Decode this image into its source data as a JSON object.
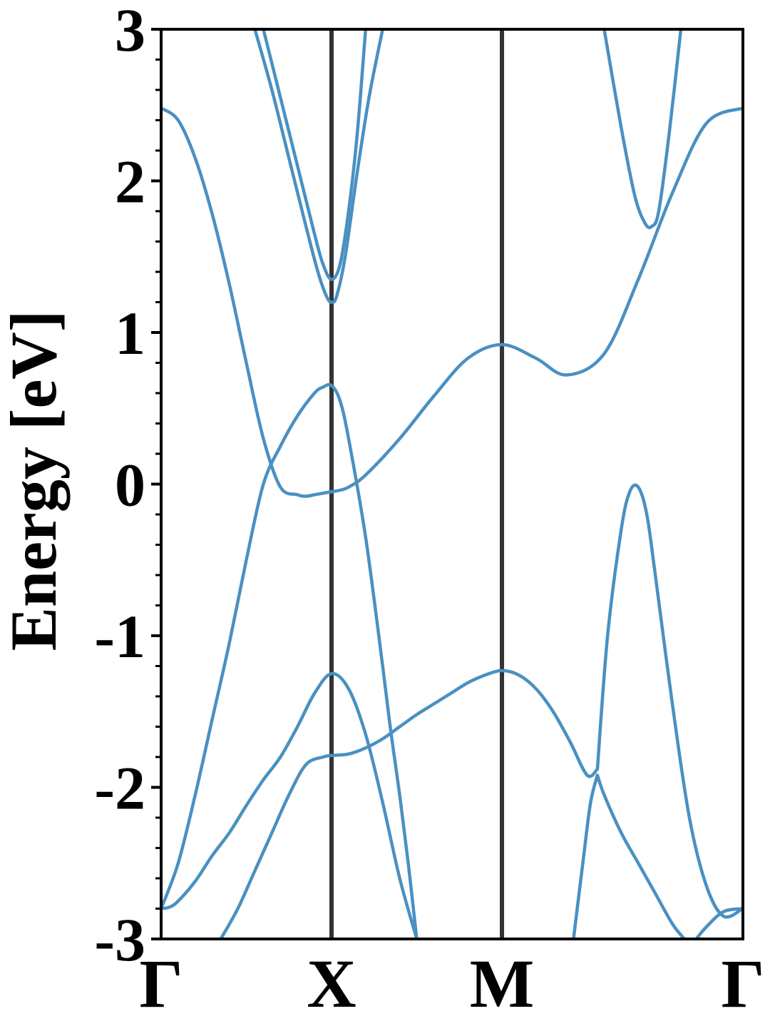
{
  "chart_data": {
    "type": "line",
    "ylabel": "Energy [eV]",
    "ylim": [
      -3,
      3
    ],
    "xlim": [
      0,
      3.414
    ],
    "yticks": [
      -3,
      -2,
      -1,
      0,
      1,
      2,
      3
    ],
    "ytick_labels": [
      "-3",
      "-2",
      "-1",
      "0",
      "1",
      "2",
      "3"
    ],
    "minor_ytick_step": 0.2,
    "kpoints": [
      {
        "label": "Γ",
        "x": 0
      },
      {
        "label": "X",
        "x": 1.0
      },
      {
        "label": "M",
        "x": 2.0
      },
      {
        "label": "Γ",
        "x": 3.414
      }
    ],
    "band_color": "#4a90c2",
    "kpath_line_color": "#333333",
    "grid": false,
    "legend": "none",
    "series": [
      {
        "x": [
          0,
          0.1,
          0.2,
          0.3,
          0.4,
          0.5,
          0.6,
          0.7,
          0.8,
          0.85,
          0.9,
          0.95,
          1.0,
          1.05,
          1.1,
          1.2,
          1.4,
          1.6,
          1.8,
          2.0,
          2.2,
          2.38,
          2.6,
          2.8,
          3.0,
          3.2,
          3.414
        ],
        "y": [
          2.48,
          2.4,
          2.15,
          1.78,
          1.32,
          0.8,
          0.3,
          -0.02,
          -0.07,
          -0.08,
          -0.07,
          -0.06,
          -0.05,
          -0.04,
          -0.02,
          0.06,
          0.3,
          0.58,
          0.83,
          0.92,
          0.83,
          0.72,
          0.86,
          1.35,
          1.92,
          2.38,
          2.48
        ]
      },
      {
        "x": [
          0,
          0.1,
          0.2,
          0.3,
          0.4,
          0.5,
          0.6,
          0.7,
          0.8,
          0.9,
          0.95,
          1.0,
          1.05,
          1.1,
          1.2,
          1.3,
          1.35,
          1.4,
          1.45,
          1.5
        ],
        "y": [
          -2.8,
          -2.5,
          -2.05,
          -1.55,
          -1.05,
          -0.5,
          0.0,
          0.25,
          0.45,
          0.6,
          0.64,
          0.65,
          0.55,
          0.3,
          -0.35,
          -1.2,
          -1.65,
          -2.05,
          -2.5,
          -3.0
        ]
      },
      {
        "x": [
          0,
          0.05,
          0.1,
          0.2,
          0.3,
          0.4,
          0.5,
          0.6,
          0.7,
          0.8,
          0.9,
          1.0,
          1.1,
          1.2,
          1.3,
          1.4,
          1.5,
          1.6,
          1.7,
          1.8,
          1.9,
          2.0,
          2.1,
          2.2,
          2.3,
          2.4,
          2.5,
          2.55,
          2.6,
          2.7,
          2.8,
          2.9,
          3.0,
          3.1,
          3.2,
          3.3,
          3.414
        ],
        "y": [
          -2.8,
          -2.79,
          -2.75,
          -2.62,
          -2.45,
          -2.3,
          -2.12,
          -1.95,
          -1.8,
          -1.6,
          -1.38,
          -1.25,
          -1.35,
          -1.65,
          -2.1,
          -2.6,
          -3.0,
          null,
          null,
          null,
          null,
          null,
          null,
          null,
          null,
          null,
          null,
          null,
          null,
          null,
          null,
          null,
          null,
          null,
          null,
          null,
          null
        ]
      },
      {
        "x": [
          0.35,
          0.45,
          0.55,
          0.65,
          0.75,
          0.85,
          0.95,
          1.0,
          1.1,
          1.2,
          1.3,
          1.4,
          1.5,
          1.6,
          1.7,
          1.8,
          1.9,
          2.0,
          2.1,
          2.2,
          2.3,
          2.4,
          2.5,
          2.56
        ],
        "y": [
          -3.0,
          -2.8,
          -2.55,
          -2.3,
          -2.05,
          -1.85,
          -1.8,
          -1.79,
          -1.78,
          -1.74,
          -1.68,
          -1.6,
          -1.52,
          -1.45,
          -1.38,
          -1.31,
          -1.26,
          -1.23,
          -1.26,
          -1.35,
          -1.5,
          -1.7,
          -1.92,
          -1.88
        ]
      },
      {
        "x": [
          2.56,
          2.62,
          2.7,
          2.75,
          2.8,
          2.85,
          2.9,
          3.0,
          3.1,
          3.2,
          3.3,
          3.414
        ],
        "y": [
          -1.88,
          -1.0,
          -0.3,
          -0.05,
          -0.02,
          -0.2,
          -0.6,
          -1.45,
          -2.2,
          -2.65,
          -2.85,
          -2.8
        ]
      },
      {
        "x": [
          2.56,
          2.6,
          2.7,
          2.8,
          2.9,
          3.0,
          3.07
        ],
        "y": [
          -1.92,
          -2.05,
          -2.3,
          -2.5,
          -2.7,
          -2.9,
          -3.0
        ]
      },
      {
        "x": [
          2.42,
          2.48,
          2.52,
          2.56
        ],
        "y": [
          -3.0,
          -2.45,
          -2.1,
          -1.92
        ]
      },
      {
        "x": [
          3.14,
          3.2,
          3.3,
          3.414
        ],
        "y": [
          -3.0,
          -2.92,
          -2.82,
          -2.8
        ]
      },
      {
        "x": [
          0.55,
          0.65,
          0.75,
          0.85,
          0.92,
          0.97,
          1.0,
          1.03,
          1.08,
          1.15,
          1.22,
          1.3
        ],
        "y": [
          3.0,
          2.6,
          2.15,
          1.7,
          1.4,
          1.24,
          1.2,
          1.24,
          1.5,
          2.05,
          2.55,
          3.0
        ]
      },
      {
        "x": [
          0.6,
          0.7,
          0.8,
          0.9,
          0.95,
          1.0,
          1.05,
          1.1,
          1.15,
          1.2
        ],
        "y": [
          3.0,
          2.55,
          2.1,
          1.65,
          1.45,
          1.35,
          1.45,
          1.8,
          2.3,
          3.0
        ]
      },
      {
        "x": [
          2.6,
          2.7,
          2.78,
          2.84,
          2.88,
          2.92,
          2.98,
          3.05
        ],
        "y": [
          3.0,
          2.35,
          1.9,
          1.72,
          1.7,
          1.8,
          2.3,
          3.0
        ]
      }
    ]
  }
}
